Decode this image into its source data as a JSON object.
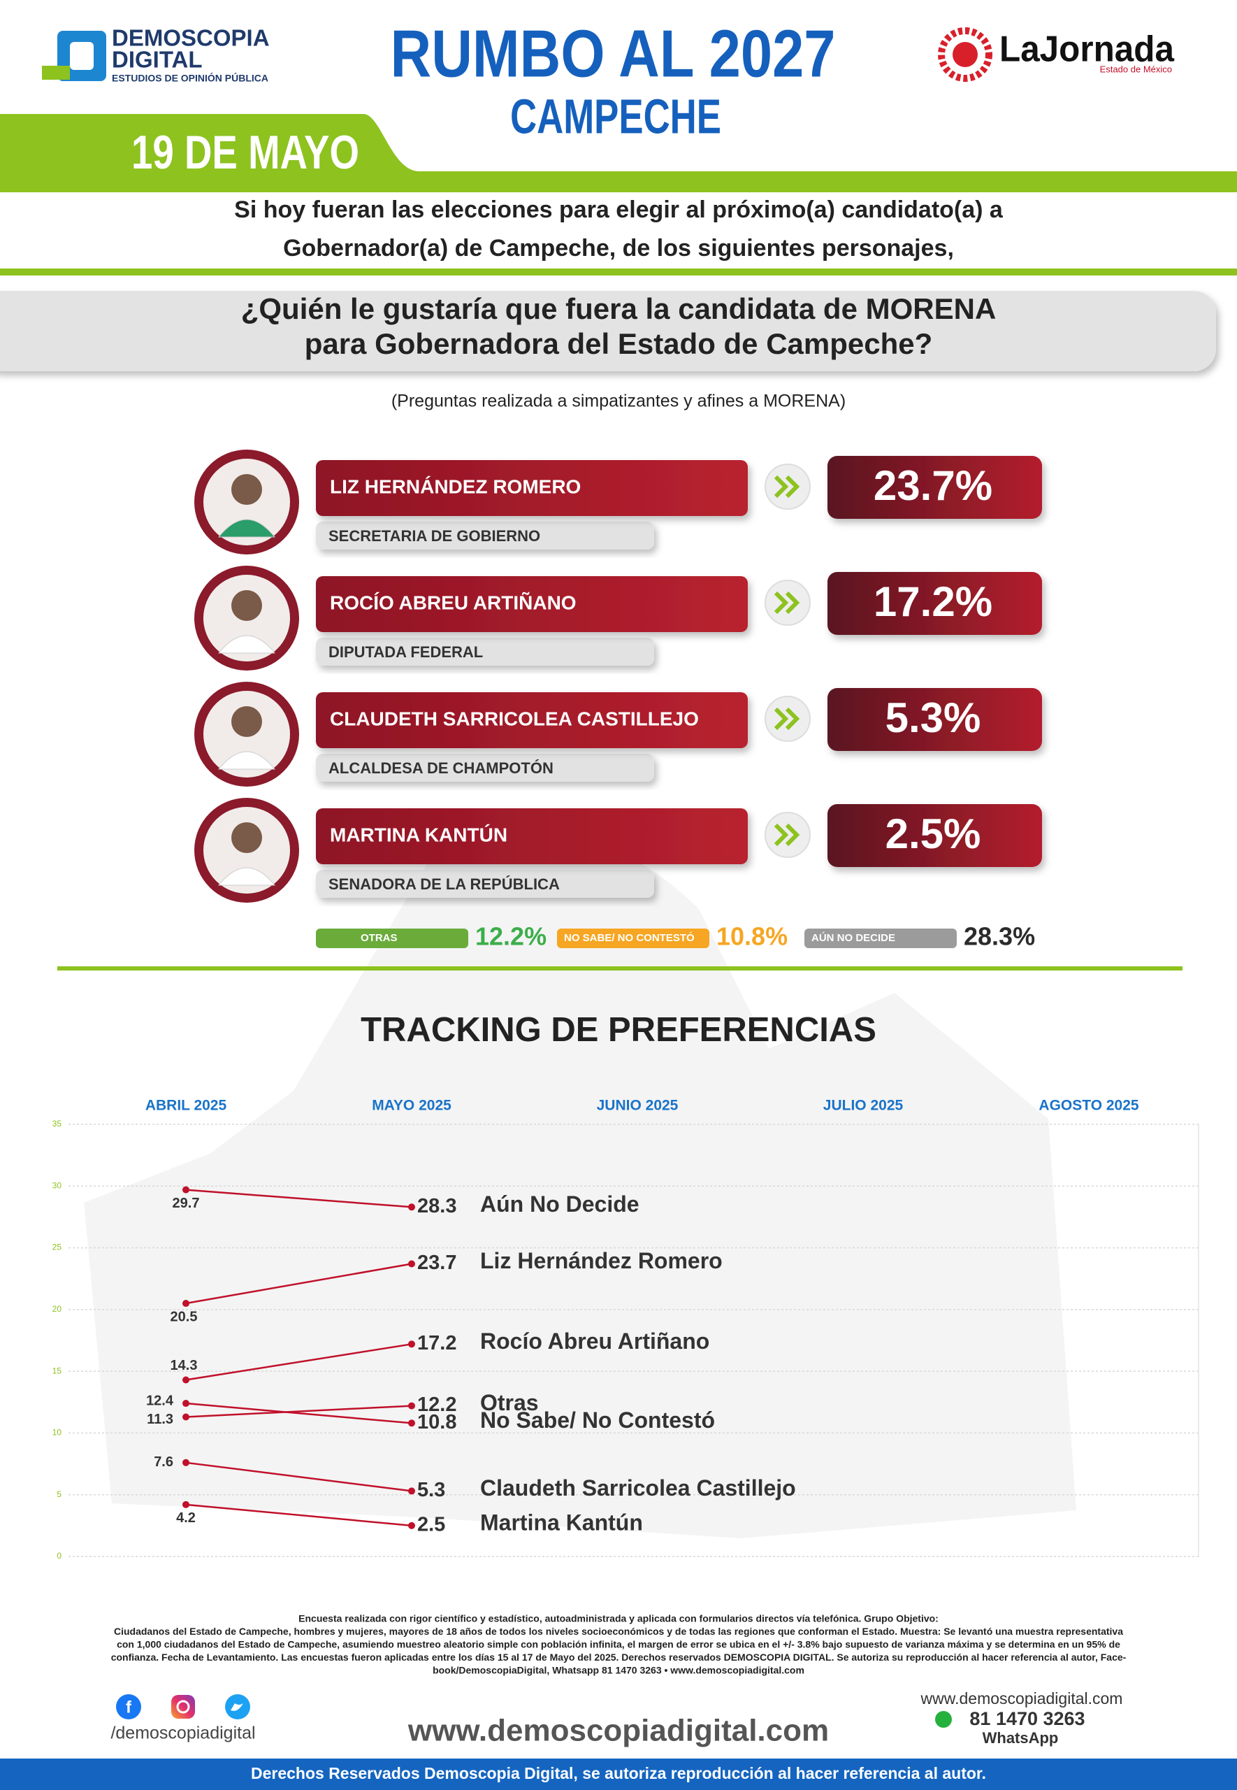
{
  "header": {
    "brand": "DEMOSCOPIA",
    "brand2": "DIGITAL",
    "brand_sub": "ESTUDIOS DE OPINIÓN PÚBLICA",
    "title": "RUMBO AL 2027",
    "subtitle": "CAMPECHE",
    "date": "19 DE MAYO",
    "partner": "LaJornada",
    "partner_sub": "Estado de México"
  },
  "intro": [
    "Si hoy fueran las elecciones para elegir al próximo(a) candidato(a) a",
    "Gobernador(a) de Campeche, de los siguientes personajes,"
  ],
  "question": [
    "¿Quién le gustaría que fuera la candidata de MORENA",
    "para Gobernadora del Estado de Campeche?"
  ],
  "note": "(Preguntas realizada a simpatizantes y afines a MORENA)",
  "candidates": [
    {
      "name": "LIZ HERNÁNDEZ ROMERO",
      "role": "SECRETARIA DE GOBIERNO",
      "result": "23.7%"
    },
    {
      "name": "ROCÍO ABREU ARTIÑANO",
      "role": "DIPUTADA FEDERAL",
      "result": "17.2%"
    },
    {
      "name": "CLAUDETH SARRICOLEA CASTILLEJO",
      "role": "ALCALDESA DE CHAMPOTÓN",
      "result": "5.3%"
    },
    {
      "name": "MARTINA KANTÚN",
      "role": "SENADORA DE LA REPÚBLICA",
      "result": "2.5%"
    }
  ],
  "others": [
    {
      "label": "OTRAS",
      "result": "12.2%",
      "color": "#6aab3a",
      "text_color": "#3cae4a"
    },
    {
      "label": "NO SABE/ NO CONTESTÓ",
      "result": "10.8%",
      "color": "#f6a623",
      "text_color": "#f6a623"
    },
    {
      "label": "AÚN NO DECIDE",
      "result": "28.3%",
      "color": "#9b9b9b",
      "text_color": "#2b2b2b"
    }
  ],
  "chart_data": {
    "type": "line",
    "title": "TRACKING DE PREFERENCIAS",
    "categories": [
      "ABRIL 2025",
      "MAYO 2025",
      "JUNIO 2025",
      "JULIO 2025",
      "AGOSTO 2025"
    ],
    "series": [
      {
        "name": "Aún No Decide",
        "color": "#c0102a",
        "values": [
          29.7,
          28.3,
          null,
          null,
          null
        ]
      },
      {
        "name": "Liz Hernández Romero",
        "color": "#c0102a",
        "values": [
          20.5,
          23.7,
          null,
          null,
          null
        ]
      },
      {
        "name": "Rocío Abreu Artiñano",
        "color": "#c0102a",
        "values": [
          14.3,
          17.2,
          null,
          null,
          null
        ]
      },
      {
        "name": "Otras",
        "color": "#c0102a",
        "values": [
          11.3,
          12.2,
          null,
          null,
          null
        ]
      },
      {
        "name": "No Sabe/ No Contestó",
        "color": "#c0102a",
        "values": [
          12.4,
          10.8,
          null,
          null,
          null
        ]
      },
      {
        "name": "Claudeth Sarricolea Castillejo",
        "color": "#c0102a",
        "values": [
          7.6,
          5.3,
          null,
          null,
          null
        ]
      },
      {
        "name": "Martina Kantún",
        "color": "#c0102a",
        "values": [
          4.2,
          2.5,
          null,
          null,
          null
        ]
      }
    ],
    "ylim": [
      0,
      35
    ],
    "yticks": [
      0,
      5,
      10,
      15,
      20,
      25,
      30,
      35
    ],
    "grid": true
  },
  "footer": {
    "text": [
      "Encuesta realizada con rigor científico y estadístico, autoadministrada y aplicada con formularios directos vía telefónica. Grupo Objetivo:",
      "Ciudadanos del Estado de Campeche, hombres y mujeres, mayores de 18 años de todos los niveles socioeconómicos y de todas las regiones que conforman el Estado. Muestra: Se levantó una muestra representativa",
      "con 1,000 ciudadanos del Estado de Campeche, asumiendo muestreo aleatorio simple con población infinita, el margen de error se ubica en el +/- 3.8% bajo supuesto de varianza máxima y se determina en un 95% de",
      "confianza. Fecha de Levantamiento. Las encuestas fueron aplicadas entre los días 15 al 17 de Mayo del 2025. Derechos reservados DEMOSCOPIA DIGITAL. Se autoriza su reproducción al hacer referencia al autor, Face-",
      "book/DemoscopiaDigital, Whatsapp 81 1470 3263 • www.demoscopiadigital.com"
    ],
    "social": "/demoscopiadigital",
    "website_big": "www.demoscopiadigital.com",
    "website": "www.demoscopiadigital.com",
    "phone": "81 1470 3263",
    "whatsapp": "WhatsApp",
    "rights": "Derechos Reservados Demoscopia Digital, se autoriza reproducción al hacer referencia al autor."
  }
}
